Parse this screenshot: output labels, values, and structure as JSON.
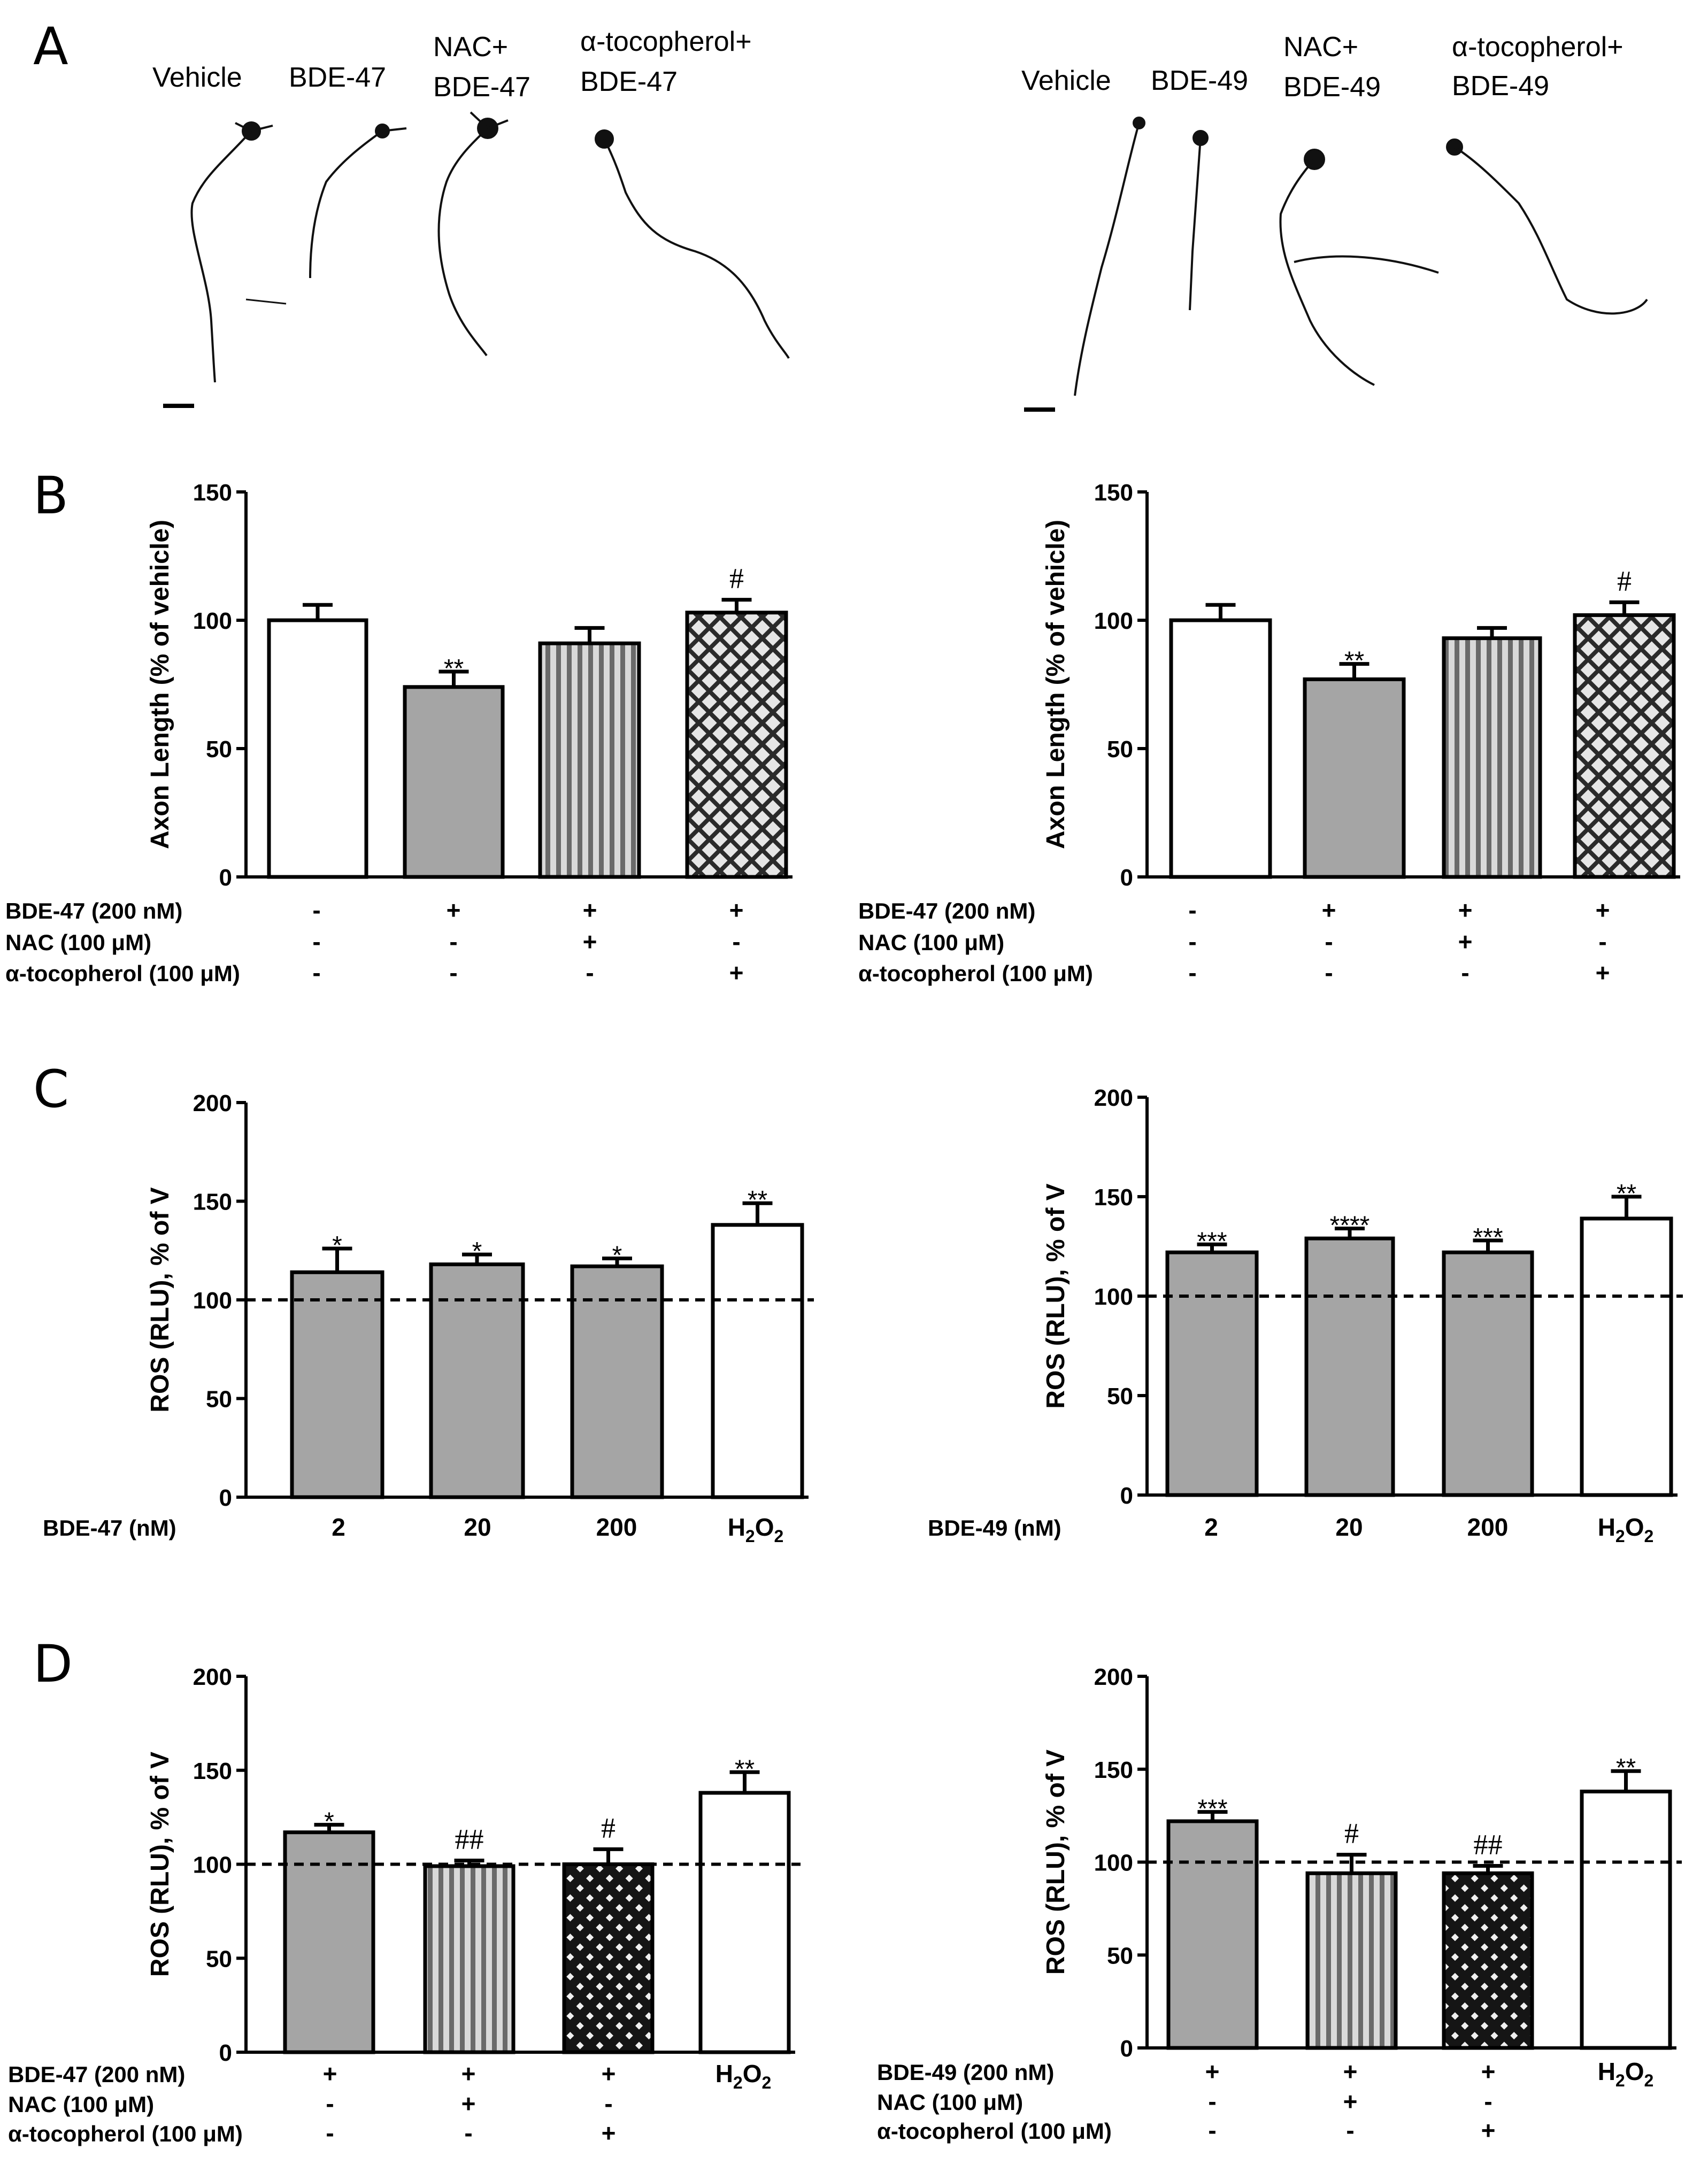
{
  "panels": {
    "A": "A",
    "B": "B",
    "C": "C",
    "D": "D"
  },
  "micrographs": [
    {
      "labels": [
        "Vehicle",
        "BDE-47",
        "NAC+",
        "BDE-47",
        "α-tocopherol+",
        "BDE-47"
      ]
    },
    {
      "labels": [
        "Vehicle",
        "BDE-49",
        "NAC+",
        "BDE-49",
        "α-tocopherol+",
        "BDE-49"
      ]
    }
  ],
  "chart_data": [
    {
      "id": "B-left",
      "type": "bar",
      "ylabel": "Axon Length (% of vehicle)",
      "ylim": [
        0,
        150
      ],
      "yticks": [
        "0",
        "50",
        "100",
        "150"
      ],
      "values": [
        100,
        74,
        91,
        103
      ],
      "errors": [
        6,
        6,
        6,
        5
      ],
      "fills": [
        "white",
        "gray",
        "vstripe",
        "cross"
      ],
      "annotations": [
        "",
        "**",
        "",
        "#"
      ],
      "rows": [
        {
          "label": "BDE-47 (200 nM)",
          "cells": [
            "-",
            "+",
            "+",
            "+"
          ]
        },
        {
          "label": "NAC (100 μM)",
          "cells": [
            "-",
            "-",
            "+",
            "-"
          ]
        },
        {
          "label": "α-tocopherol (100 μM)",
          "cells": [
            "-",
            "-",
            "-",
            "+"
          ]
        }
      ]
    },
    {
      "id": "B-right",
      "type": "bar",
      "ylabel": "Axon Length (% of vehicle)",
      "ylim": [
        0,
        150
      ],
      "yticks": [
        "0",
        "50",
        "100",
        "150"
      ],
      "values": [
        100,
        77,
        93,
        102
      ],
      "errors": [
        6,
        6,
        4,
        5
      ],
      "fills": [
        "white",
        "gray",
        "vstripe",
        "cross"
      ],
      "annotations": [
        "",
        "**",
        "",
        "#"
      ],
      "rows": [
        {
          "label": "BDE-47 (200 nM)",
          "cells": [
            "-",
            "+",
            "+",
            "+"
          ]
        },
        {
          "label": "NAC (100 μM)",
          "cells": [
            "-",
            "-",
            "+",
            "-"
          ]
        },
        {
          "label": "α-tocopherol (100 μM)",
          "cells": [
            "-",
            "-",
            "-",
            "+"
          ]
        }
      ]
    },
    {
      "id": "C-left",
      "type": "bar",
      "ylabel": "ROS (RLU), % of V",
      "ylim": [
        0,
        200
      ],
      "yticks": [
        "0",
        "50",
        "100",
        "150",
        "200"
      ],
      "reference_line": 100,
      "values": [
        114,
        118,
        117,
        138
      ],
      "errors": [
        12,
        5,
        4,
        11
      ],
      "fills": [
        "gray",
        "gray",
        "gray",
        "white"
      ],
      "annotations": [
        "*",
        "*",
        "*",
        "**"
      ],
      "rows": [
        {
          "label": "BDE-47 (nM)",
          "cells": [
            "2",
            "20",
            "200",
            "H2O2"
          ]
        }
      ]
    },
    {
      "id": "C-right",
      "type": "bar",
      "ylabel": "ROS (RLU), % of V",
      "ylim": [
        0,
        200
      ],
      "yticks": [
        "0",
        "50",
        "100",
        "150",
        "200"
      ],
      "reference_line": 100,
      "values": [
        122,
        129,
        122,
        139
      ],
      "errors": [
        4,
        5,
        6,
        11
      ],
      "fills": [
        "gray",
        "gray",
        "gray",
        "white"
      ],
      "annotations": [
        "***",
        "****",
        "***",
        "**"
      ],
      "rows": [
        {
          "label": "BDE-49 (nM)",
          "cells": [
            "2",
            "20",
            "200",
            "H2O2"
          ]
        }
      ]
    },
    {
      "id": "D-left",
      "type": "bar",
      "ylabel": "ROS (RLU), % of V",
      "ylim": [
        0,
        200
      ],
      "yticks": [
        "0",
        "50",
        "100",
        "150",
        "200"
      ],
      "reference_line": 100,
      "values": [
        117,
        99,
        100,
        138
      ],
      "errors": [
        4,
        3,
        8,
        11
      ],
      "fills": [
        "gray",
        "vstripe",
        "cross-dark",
        "white"
      ],
      "annotations": [
        "*",
        "##",
        "#",
        "**"
      ],
      "rows": [
        {
          "label": "BDE-47 (200 nM)",
          "cells": [
            "+",
            "+",
            "+",
            "H2O2"
          ]
        },
        {
          "label": "NAC (100 μM)",
          "cells": [
            "-",
            "+",
            "-",
            ""
          ]
        },
        {
          "label": "α-tocopherol (100 μM)",
          "cells": [
            "-",
            "-",
            "+",
            ""
          ]
        }
      ]
    },
    {
      "id": "D-right",
      "type": "bar",
      "ylabel": "ROS (RLU), % of V",
      "ylim": [
        0,
        200
      ],
      "yticks": [
        "0",
        "50",
        "100",
        "150",
        "200"
      ],
      "reference_line": 100,
      "values": [
        122,
        94,
        94,
        138
      ],
      "errors": [
        5,
        10,
        4,
        11
      ],
      "fills": [
        "gray",
        "vstripe",
        "cross-dark",
        "white"
      ],
      "annotations": [
        "***",
        "#",
        "##",
        "**"
      ],
      "rows": [
        {
          "label": "BDE-49 (200 nM)",
          "cells": [
            "+",
            "+",
            "+",
            "H2O2"
          ]
        },
        {
          "label": "NAC (100 μM)",
          "cells": [
            "-",
            "+",
            "-",
            ""
          ]
        },
        {
          "label": "α-tocopherol (100 μM)",
          "cells": [
            "-",
            "-",
            "+",
            ""
          ]
        }
      ]
    }
  ]
}
